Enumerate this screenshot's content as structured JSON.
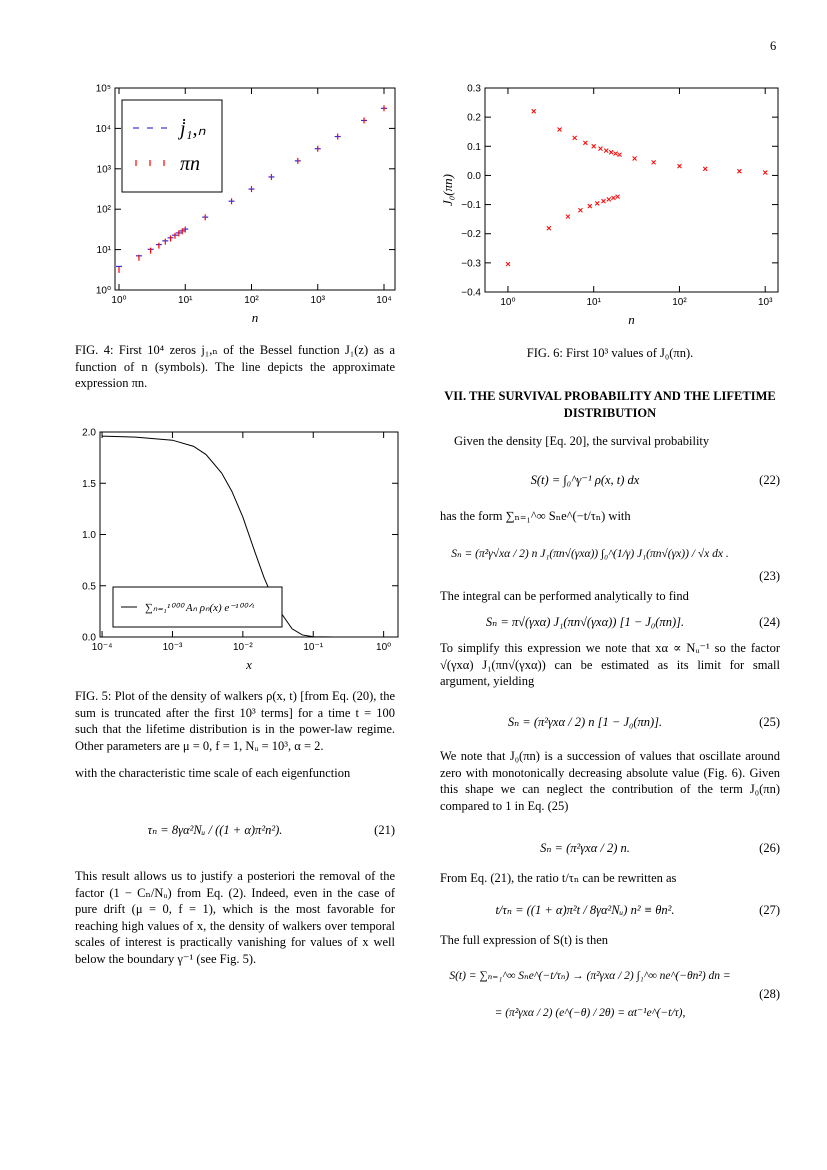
{
  "page_number": "6",
  "figures": [
    {
      "chart": {
        "type": "scatter",
        "xlabel": "n",
        "xlog": true,
        "ylog": true,
        "xlim": [
          0.87,
          14660
        ],
        "ylim": [
          1,
          100000
        ],
        "xticks": [
          {
            "value": 1,
            "label": "10⁰"
          },
          {
            "value": 10,
            "label": "10¹"
          },
          {
            "value": 100,
            "label": "10²"
          },
          {
            "value": 1000,
            "label": "10³"
          },
          {
            "value": 10000,
            "label": "10⁴"
          }
        ],
        "yticks": [
          {
            "value": 1,
            "label": "10⁰"
          },
          {
            "value": 10,
            "label": "10¹"
          },
          {
            "value": 100,
            "label": "10²"
          },
          {
            "value": 1000,
            "label": "10³"
          },
          {
            "value": 10000,
            "label": "10⁴"
          },
          {
            "value": 100000,
            "label": "10⁵"
          }
        ],
        "legend": "upper left",
        "x": [
          1,
          2,
          3,
          4,
          5,
          6,
          7,
          8,
          9,
          10,
          20,
          50,
          100,
          200,
          500,
          1000,
          2000,
          5000,
          10000
        ],
        "series": [
          {
            "name": "j̇₁,ₙ",
            "color": "#3030e0",
            "marker": "hline",
            "values": [
              3.83,
              7.02,
              10.17,
              13.32,
              16.47,
              19.62,
              22.76,
              25.9,
              29.05,
              32.19,
              63.62,
              157.87,
              314.95,
              629.1,
              1571.6,
              3142.4,
              6284.0,
              15708.7,
              31416.7
            ]
          },
          {
            "name": "πn",
            "color": "#ff0000",
            "marker": "vline",
            "values": [
              3.14,
              6.28,
              9.42,
              12.57,
              15.71,
              18.85,
              21.99,
              25.13,
              28.27,
              31.42,
              62.83,
              157.08,
              314.16,
              628.32,
              1570.8,
              3141.59,
              6283.19,
              15707.96,
              31415.93
            ]
          }
        ]
      },
      "caption": "FIG. 4: First 10⁴ zeros j₁,ₙ of the Bessel function J₁(z) as a function of n (symbols). The line depicts the approximate expression πn."
    },
    {
      "chart": {
        "type": "line",
        "xlabel": "x",
        "xlog": true,
        "ylog": false,
        "xlim": [
          9.35e-05,
          1.6
        ],
        "ylim": [
          0,
          2
        ],
        "xticks": [
          {
            "value": 0.0001,
            "label": "10⁻⁴"
          },
          {
            "value": 0.001,
            "label": "10⁻³"
          },
          {
            "value": 0.01,
            "label": "10⁻²"
          },
          {
            "value": 0.1,
            "label": "10⁻¹"
          },
          {
            "value": 1,
            "label": "10⁰"
          }
        ],
        "yticks": [
          {
            "value": 0,
            "label": "0.0"
          },
          0.5,
          {
            "value": 1,
            "label": "1.0"
          },
          1.5,
          {
            "value": 2,
            "label": "2.0"
          }
        ],
        "legend": "lower left",
        "x": [
          0.0001,
          0.0003,
          0.001,
          0.002,
          0.003,
          0.005,
          0.007,
          0.01,
          0.015,
          0.02,
          0.03,
          0.05,
          0.07,
          0.1,
          0.2,
          1
        ],
        "series": [
          {
            "name": "∑ₙ₌₁¹⁰⁰⁰ Aₙ ρₙ(x) e⁻¹⁰⁰ᐟᵗ",
            "color": "#000000",
            "values": [
              1.96,
              1.95,
              1.92,
              1.86,
              1.78,
              1.6,
              1.42,
              1.17,
              0.82,
              0.58,
              0.3,
              0.08,
              0.02,
              0.003,
              0,
              0
            ]
          }
        ]
      },
      "caption": "FIG. 5: Plot of the density of walkers ρ(x, t) [from Eq. (20), the sum is truncated after the first 10³ terms] for a time t = 100 such that the lifetime distribution is in the power-law regime. Other parameters are μ = 0, f = 1, Nᵤ = 10³, α = 2."
    },
    {
      "chart": {
        "type": "scatter",
        "xlabel": "n",
        "ylabel": "J₀(πn)",
        "xlog": true,
        "ylog": false,
        "xlim": [
          0.54,
          1410
        ],
        "ylim": [
          -0.4,
          0.3
        ],
        "xticks": [
          {
            "value": 1,
            "label": "10⁰"
          },
          {
            "value": 10,
            "label": "10¹"
          },
          {
            "value": 100,
            "label": "10²"
          },
          {
            "value": 1000,
            "label": "10³"
          }
        ],
        "yticks": [
          {
            "value": -0.4,
            "label": "−0.4"
          },
          {
            "value": -0.3,
            "label": "−0.3"
          },
          {
            "value": -0.2,
            "label": "−0.2"
          },
          {
            "value": -0.1,
            "label": "−0.1"
          },
          {
            "value": 0,
            "label": "0.0"
          },
          0.1,
          0.2,
          0.3
        ],
        "x": [
          1,
          2,
          3,
          4,
          5,
          6,
          7,
          8,
          9,
          10,
          11,
          12,
          13,
          14,
          15,
          16,
          17,
          18,
          19,
          20,
          30,
          50,
          100,
          200,
          500,
          1000
        ],
        "color": "#ff0000",
        "marker": "x",
        "values": [
          -0.3042,
          0.2203,
          -0.1812,
          0.1575,
          -0.1412,
          0.129,
          -0.1195,
          0.1118,
          -0.1054,
          0.1,
          -0.096,
          0.0919,
          -0.0883,
          0.0851,
          -0.0822,
          0.0796,
          -0.0772,
          0.075,
          -0.073,
          0.0712,
          0.0581,
          0.045,
          0.0318,
          0.0225,
          0.0142,
          0.0101
        ]
      },
      "caption": "FIG. 6: First 10³ values of J₀(πn)."
    }
  ],
  "section_title": "VII.   THE SURVIVAL PROBABILITY AND THE LIFETIME DISTRIBUTION",
  "left_text": {
    "p1": "with the characteristic time scale of each eigenfunction",
    "eq21": "τₙ = 8γα²Nᵤ / ((1 + α)π²n²).",
    "eq21_number": "(21)",
    "p2": "This result allows us to justify a posteriori the removal of the factor (1 − Cₙ/Nᵤ) from Eq. (2). Indeed, even in the case of pure drift (μ = 0, f = 1), which is the most favorable for reaching high values of x, the density of walkers over temporal scales of interest is practically vanishing for values of x well below the boundary γ⁻¹ (see Fig. 5)."
  },
  "right_text": {
    "p1": "Given the density [Eq. 20], the survival probability",
    "eq22": "S(t) = ∫₀^γ⁻¹ ρ(x, t) dx",
    "eq22_number": "(22)",
    "p2": "has the form ∑ₙ₌₁^∞ Sₙe^(−t/τₙ) with",
    "eq23": "Sₙ = (π²γ√xα / 2) n J₁(πn√(γxα)) ∫₀^(1/γ) J₁(πn√(γx)) / √x dx .",
    "eq23_number": "(23)",
    "p3": "The integral can be performed analytically to find",
    "eq24": "Sₙ = π√(γxα) J₁(πn√(γxα)) [1 − J₀(πn)].",
    "eq24_number": "(24)",
    "p4": "To simplify this expression we note that xα ∝ Nᵤ⁻¹ so the factor √(γxα) J₁(πn√(γxα)) can be estimated as its limit for small argument, yielding",
    "eq25": "Sₙ = (π²γxα / 2) n [1 − J₀(πn)].",
    "eq25_number": "(25)",
    "p5": "We note that J₀(πn) is a succession of values that oscillate around zero with monotonically decreasing absolute value (Fig. 6). Given this shape we can neglect the contribution of the term J₀(πn) compared to 1 in Eq. (25)",
    "eq26": "Sₙ = (π²γxα / 2) n.",
    "eq26_number": "(26)",
    "p6": "From Eq. (21), the ratio t/τₙ can be rewritten as",
    "eq27": "t/τₙ = ((1 + α)π²t / 8γα²Nᵤ) n² ≡ θn².",
    "eq27_number": "(27)",
    "p7": "The full expression of S(t) is then",
    "eq28_line1": "S(t) = ∑ₙ₌₁^∞ Sₙe^(−t/τₙ) → (π²γxα / 2) ∫₁^∞ ne^(−θn²) dn =",
    "eq28_line2": "= (π²γxα / 2) (e^(−θ) / 2θ) = αt⁻¹e^(−t/τ),",
    "eq28_number": "(28)"
  }
}
